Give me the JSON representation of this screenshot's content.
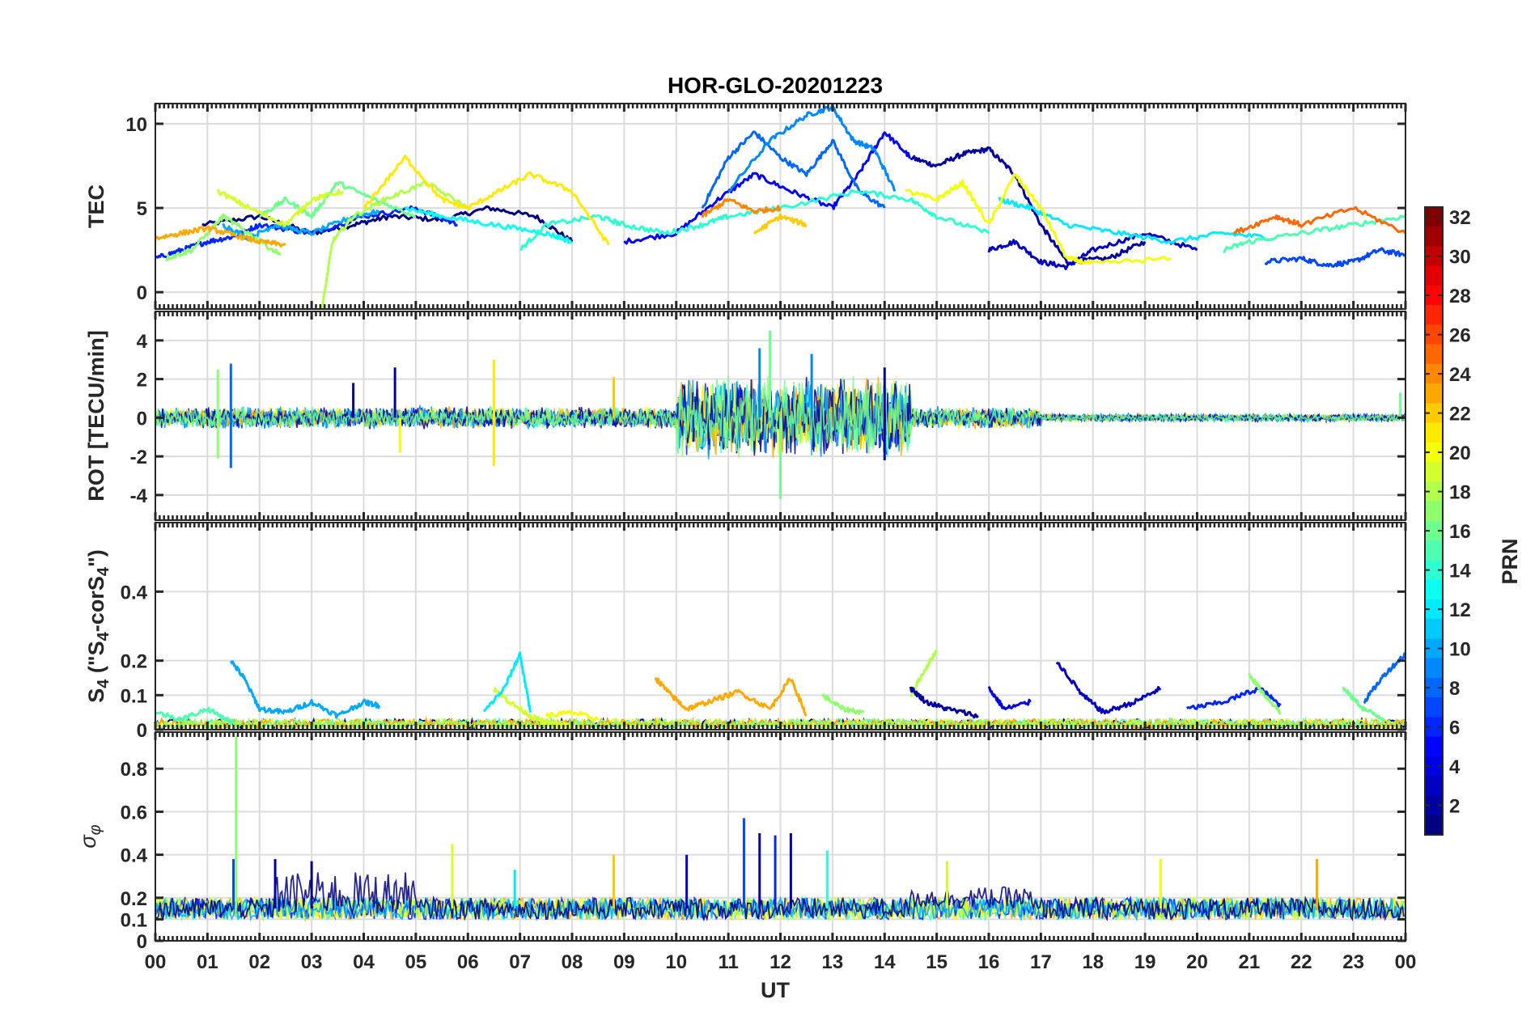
{
  "title": "HOR-GLO-20201223",
  "xlabel": "UT",
  "x_tick_labels": [
    "00",
    "01",
    "02",
    "03",
    "04",
    "05",
    "06",
    "07",
    "08",
    "09",
    "10",
    "11",
    "12",
    "13",
    "14",
    "15",
    "16",
    "17",
    "18",
    "19",
    "20",
    "21",
    "22",
    "23",
    "00"
  ],
  "colorbar": {
    "label": "PRN",
    "colormap": "jet",
    "range": [
      1,
      32
    ],
    "tick_values": [
      2,
      4,
      6,
      8,
      10,
      12,
      14,
      16,
      18,
      20,
      22,
      24,
      26,
      28,
      30,
      32
    ],
    "tick_labels": [
      "2",
      "4",
      "6",
      "8",
      "10",
      "12",
      "14",
      "16",
      "18",
      "20",
      "22",
      "24",
      "26",
      "28",
      "30",
      "32"
    ]
  },
  "chart_data": [
    {
      "type": "line",
      "ylabel": "TEC",
      "xlim": [
        0,
        24
      ],
      "ylim": [
        -1,
        11.2
      ],
      "yticks": [
        0,
        5,
        10
      ],
      "ytick_labels": [
        "0",
        "5",
        "10"
      ],
      "series": [
        {
          "prn": 1,
          "x": [
            0.9,
            2,
            3,
            3.8,
            4.5,
            5.5,
            6.4,
            7.3,
            8
          ],
          "y": [
            4,
            4.5,
            3.5,
            4,
            4.5,
            4.3,
            5,
            4.5,
            3
          ]
        },
        {
          "prn": 2,
          "x": [
            14.5,
            15,
            15.5,
            16,
            16.5,
            17,
            17.5,
            18.3,
            19
          ],
          "y": [
            8,
            7.5,
            8.2,
            8.5,
            7,
            4,
            1.8,
            2,
            3
          ]
        },
        {
          "prn": 3,
          "x": [
            16,
            16.5,
            17,
            17.5,
            18,
            19,
            20
          ],
          "y": [
            2.5,
            3,
            1.8,
            1.5,
            2.5,
            3.5,
            2.5
          ]
        },
        {
          "prn": 5,
          "x": [
            9,
            10,
            10.8,
            11.5,
            12.2,
            13,
            13.5,
            14,
            14.5
          ],
          "y": [
            3,
            3.5,
            5.5,
            7,
            6,
            5,
            7,
            9.5,
            8
          ]
        },
        {
          "prn": 6,
          "x": [
            0,
            0.5,
            1,
            1.5,
            2,
            3,
            4,
            5,
            5.8
          ],
          "y": [
            2,
            2.5,
            3,
            3.3,
            4,
            3.5,
            4.5,
            5,
            4
          ]
        },
        {
          "prn": 7,
          "x": [
            21.3,
            22,
            22.5,
            23,
            23.5,
            24
          ],
          "y": [
            1.8,
            2,
            1.6,
            1.8,
            2.5,
            2.2
          ]
        },
        {
          "prn": 8,
          "x": [
            10.5,
            11,
            11.5,
            12,
            12.5,
            13,
            13.5,
            14
          ],
          "y": [
            5,
            8,
            9.5,
            8,
            7,
            9,
            6,
            5
          ]
        },
        {
          "prn": 9,
          "x": [
            11,
            11.8,
            12.5,
            13,
            13.4,
            13.8,
            14.2
          ],
          "y": [
            6,
            9,
            10.5,
            11,
            9,
            8.5,
            6
          ]
        },
        {
          "prn": 10,
          "x": [
            1.3,
            1.8,
            2.3,
            3,
            3.8,
            4.3
          ],
          "y": [
            4,
            3.2,
            4,
            3.5,
            4.5,
            4.8
          ]
        },
        {
          "prn": 12,
          "x": [
            16.2,
            16.8,
            17.5,
            18.5,
            19.5,
            20.5,
            21.5
          ],
          "y": [
            5.5,
            5,
            4,
            3.5,
            3,
            3.5,
            3.2
          ]
        },
        {
          "prn": 13,
          "x": [
            4.8,
            5.5,
            6.5,
            7.5,
            8
          ],
          "y": [
            5,
            4.5,
            4,
            3.5,
            3
          ]
        },
        {
          "prn": 14,
          "x": [
            7,
            7.5,
            8.5,
            9,
            9.8,
            10.5,
            11,
            12,
            13.5,
            14.5,
            15,
            16
          ],
          "y": [
            2.5,
            4,
            4.5,
            4,
            3.5,
            4,
            4.5,
            5,
            6,
            5.5,
            4.5,
            3.5
          ]
        },
        {
          "prn": 15,
          "x": [
            20.5,
            21,
            22,
            23,
            24
          ],
          "y": [
            2.5,
            3,
            3.5,
            4,
            4.5
          ]
        },
        {
          "prn": 16,
          "x": [
            2,
            2.5,
            3,
            3.5,
            4.2,
            5
          ],
          "y": [
            4.5,
            5.5,
            4.5,
            6.5,
            5.5,
            4.5
          ]
        },
        {
          "prn": 17,
          "x": [
            0.2,
            0.7,
            1.3,
            1.8,
            2.4
          ],
          "y": [
            2,
            2.5,
            4.5,
            3.5,
            2.2
          ]
        },
        {
          "prn": 18,
          "x": [
            3.2,
            3.4,
            3.8,
            4.4,
            5.2,
            6
          ],
          "y": [
            -1,
            3,
            4.5,
            5.5,
            6.5,
            5
          ]
        },
        {
          "prn": 19,
          "x": [
            1.2,
            1.8,
            2.5,
            3,
            3.6
          ],
          "y": [
            6,
            5,
            4,
            5.5,
            6
          ]
        },
        {
          "prn": 20,
          "x": [
            14.4,
            15,
            15.5,
            16,
            16.5,
            17,
            17.5,
            18,
            19.5
          ],
          "y": [
            6,
            5.5,
            6.5,
            4,
            7,
            5,
            2,
            1.7,
            2
          ]
        },
        {
          "prn": 21,
          "x": [
            4,
            4.8,
            5.5,
            6,
            6.6,
            7.2,
            8,
            8.7
          ],
          "y": [
            5,
            8,
            5.5,
            5,
            6,
            7,
            6,
            2.8
          ]
        },
        {
          "prn": 22,
          "x": [
            11.5,
            12,
            12.5
          ],
          "y": [
            3.5,
            4.5,
            4
          ]
        },
        {
          "prn": 23,
          "x": [
            0,
            0.5,
            1,
            1.5,
            2,
            2.5
          ],
          "y": [
            3.2,
            3.5,
            3.8,
            3.4,
            3,
            2.8
          ]
        },
        {
          "prn": 24,
          "x": [
            10.5,
            11,
            11.5,
            12
          ],
          "y": [
            4.5,
            5.5,
            4.8,
            5
          ]
        },
        {
          "prn": 25,
          "x": [
            20.7,
            21.5,
            22,
            23,
            24
          ],
          "y": [
            3.5,
            4.5,
            4,
            5,
            3.5
          ]
        }
      ]
    },
    {
      "type": "line",
      "ylabel": "ROT [TECU/min]",
      "xlim": [
        0,
        24
      ],
      "ylim": [
        -5.3,
        5.5
      ],
      "yticks": [
        -4,
        -2,
        0,
        2,
        4
      ],
      "ytick_labels": [
        "-4",
        "-2",
        "0",
        "2",
        "4"
      ],
      "noise_bands": [
        {
          "from": 0,
          "to": 10,
          "amplitude": 0.6
        },
        {
          "from": 10,
          "to": 14.5,
          "amplitude": 2.2
        },
        {
          "from": 14.5,
          "to": 17,
          "amplitude": 0.6
        },
        {
          "from": 17,
          "to": 24,
          "amplitude": 0.2
        }
      ],
      "spikes": [
        {
          "x": 1.2,
          "y": 2.5,
          "prn": 17
        },
        {
          "x": 1.2,
          "y": -2.1,
          "prn": 17
        },
        {
          "x": 1.45,
          "y": 2.8,
          "prn": 8
        },
        {
          "x": 1.45,
          "y": -2.6,
          "prn": 8
        },
        {
          "x": 3.8,
          "y": 1.8,
          "prn": 2
        },
        {
          "x": 4.6,
          "y": 2.6,
          "prn": 2
        },
        {
          "x": 4.7,
          "y": -1.8,
          "prn": 20
        },
        {
          "x": 6.5,
          "y": 3.0,
          "prn": 21
        },
        {
          "x": 6.5,
          "y": -2.5,
          "prn": 21
        },
        {
          "x": 8.8,
          "y": 2.1,
          "prn": 22
        },
        {
          "x": 11.8,
          "y": 4.5,
          "prn": 16
        },
        {
          "x": 12.0,
          "y": -4.2,
          "prn": 16
        },
        {
          "x": 11.6,
          "y": 3.6,
          "prn": 9
        },
        {
          "x": 12.6,
          "y": 3.3,
          "prn": 9
        },
        {
          "x": 14.0,
          "y": 2.6,
          "prn": 2
        },
        {
          "x": 14.0,
          "y": -2.2,
          "prn": 2
        },
        {
          "x": 23.9,
          "y": 1.3,
          "prn": 16
        }
      ]
    },
    {
      "type": "line",
      "ylabel": "S4 (\"S4-corS4\")",
      "ylabel_base": "S",
      "ylabel_sub": "4",
      "ylabel_mid": " (\"S",
      "ylabel_sub2": "4",
      "ylabel_mid2": "-corS",
      "ylabel_sub3": "4",
      "ylabel_end": "\")",
      "xlim": [
        0,
        24
      ],
      "ylim": [
        0,
        0.6
      ],
      "yticks": [
        0,
        0.1,
        0.2,
        0.4
      ],
      "ytick_labels": [
        "0",
        "0.1",
        "0.2",
        "0.4"
      ],
      "series": [
        {
          "prn": 10,
          "x": [
            1.45,
            1.7,
            2,
            2.5,
            3,
            3.5,
            4,
            4.3
          ],
          "y": [
            0.2,
            0.15,
            0.06,
            0.05,
            0.08,
            0.04,
            0.08,
            0.07
          ]
        },
        {
          "prn": 19,
          "x": [
            6.5,
            6.8,
            7.2,
            7.5,
            8
          ],
          "y": [
            0.12,
            0.08,
            0.04,
            0.02,
            0.01
          ]
        },
        {
          "prn": 12,
          "x": [
            6.3,
            6.7,
            7,
            7.2
          ],
          "y": [
            0.05,
            0.12,
            0.22,
            0.05
          ]
        },
        {
          "prn": 23,
          "x": [
            9.6,
            9.9,
            10.2,
            10.6,
            11.2,
            11.8,
            12.2,
            12.5
          ],
          "y": [
            0.15,
            0.1,
            0.06,
            0.08,
            0.11,
            0.06,
            0.15,
            0.04
          ]
        },
        {
          "prn": 20,
          "x": [
            7.5,
            8,
            8.5
          ],
          "y": [
            0.04,
            0.05,
            0.03
          ]
        },
        {
          "prn": 17,
          "x": [
            12.8,
            13.2,
            13.6
          ],
          "y": [
            0.1,
            0.06,
            0.05
          ]
        },
        {
          "prn": 18,
          "x": [
            14.5,
            14.8,
            15
          ],
          "y": [
            0.1,
            0.18,
            0.23
          ]
        },
        {
          "prn": 2,
          "x": [
            14.5,
            14.8,
            15.2,
            15.8
          ],
          "y": [
            0.12,
            0.08,
            0.06,
            0.04
          ]
        },
        {
          "prn": 4,
          "x": [
            16,
            16.3,
            16.8
          ],
          "y": [
            0.12,
            0.06,
            0.08
          ]
        },
        {
          "prn": 3,
          "x": [
            17.3,
            17.8,
            18.2,
            18.8,
            19.3
          ],
          "y": [
            0.2,
            0.1,
            0.05,
            0.08,
            0.12
          ]
        },
        {
          "prn": 6,
          "x": [
            19.8,
            20.5,
            21.2,
            21.6
          ],
          "y": [
            0.06,
            0.08,
            0.12,
            0.07
          ]
        },
        {
          "prn": 17,
          "x": [
            21,
            21.3,
            21.6
          ],
          "y": [
            0.16,
            0.1,
            0.05
          ]
        },
        {
          "prn": 16,
          "x": [
            22.8,
            23.2,
            23.6
          ],
          "y": [
            0.12,
            0.06,
            0.03
          ]
        },
        {
          "prn": 8,
          "x": [
            23.2,
            23.6,
            24
          ],
          "y": [
            0.08,
            0.16,
            0.22
          ]
        },
        {
          "prn": 15,
          "x": [
            0,
            0.5,
            1,
            1.5
          ],
          "y": [
            0.05,
            0.03,
            0.06,
            0.02
          ]
        }
      ]
    },
    {
      "type": "line",
      "ylabel": "σφ",
      "ylabel_base": "σ",
      "ylabel_sub": "φ",
      "xlim": [
        0,
        24
      ],
      "ylim": [
        0,
        0.97
      ],
      "yticks": [
        0,
        0.1,
        0.2,
        0.4,
        0.6,
        0.8
      ],
      "ytick_labels": [
        "0",
        "0.1",
        "0.2",
        "0.4",
        "0.6",
        "0.8"
      ],
      "baseline_bands": [
        {
          "from": 0,
          "to": 24,
          "level": 0.15,
          "amplitude": 0.05
        },
        {
          "from": 2.3,
          "to": 5,
          "level": 0.22,
          "amplitude": 0.1
        },
        {
          "from": 14.5,
          "to": 16.8,
          "level": 0.2,
          "amplitude": 0.05
        }
      ],
      "spikes": [
        {
          "x": 1.55,
          "y": 0.95,
          "prn": 17
        },
        {
          "x": 1.5,
          "y": 0.38,
          "prn": 7
        },
        {
          "x": 2.3,
          "y": 0.38,
          "prn": 2
        },
        {
          "x": 3.0,
          "y": 0.37,
          "prn": 1
        },
        {
          "x": 5.7,
          "y": 0.45,
          "prn": 19
        },
        {
          "x": 6.9,
          "y": 0.33,
          "prn": 12
        },
        {
          "x": 8.8,
          "y": 0.4,
          "prn": 22
        },
        {
          "x": 10.2,
          "y": 0.4,
          "prn": 4
        },
        {
          "x": 11.3,
          "y": 0.57,
          "prn": 7
        },
        {
          "x": 11.6,
          "y": 0.5,
          "prn": 3
        },
        {
          "x": 11.9,
          "y": 0.49,
          "prn": 6
        },
        {
          "x": 12.2,
          "y": 0.5,
          "prn": 2
        },
        {
          "x": 12.9,
          "y": 0.42,
          "prn": 14
        },
        {
          "x": 15.2,
          "y": 0.37,
          "prn": 19
        },
        {
          "x": 19.3,
          "y": 0.38,
          "prn": 20
        },
        {
          "x": 22.3,
          "y": 0.38,
          "prn": 23
        }
      ]
    }
  ]
}
